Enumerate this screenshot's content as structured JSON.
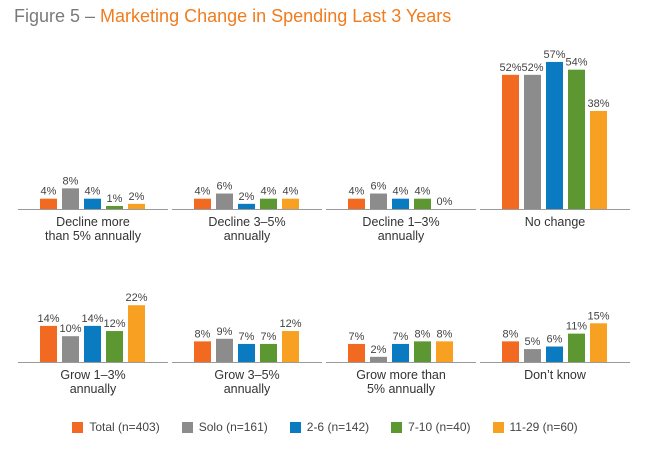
{
  "title": {
    "prefix": "Figure 5 – ",
    "text": "Marketing Change in Spending Last 3 Years"
  },
  "chart_data": {
    "type": "bar",
    "series": [
      {
        "name": "Total (n=403)",
        "color": "#f26a21",
        "values": [
          4,
          4,
          4,
          52,
          14,
          8,
          7,
          8
        ]
      },
      {
        "name": "Solo (n=161)",
        "color": "#8c8c8c",
        "values": [
          8,
          6,
          6,
          52,
          10,
          9,
          2,
          5
        ]
      },
      {
        "name": "2-6 (n=142)",
        "color": "#0a7bc1",
        "values": [
          4,
          2,
          4,
          57,
          14,
          7,
          7,
          6
        ]
      },
      {
        "name": "7-10 (n=40)",
        "color": "#5d9732",
        "values": [
          1,
          4,
          4,
          54,
          12,
          7,
          8,
          11
        ]
      },
      {
        "name": "11-29 (n=60)",
        "color": "#f7a021",
        "values": [
          2,
          4,
          0,
          38,
          22,
          12,
          8,
          15
        ]
      }
    ],
    "categories": [
      [
        "Decline more",
        "than 5% annually"
      ],
      [
        "Decline 3–5%",
        "annually"
      ],
      [
        "Decline 1–3%",
        "annually"
      ],
      [
        "No change"
      ],
      [
        "Grow 1–3%",
        "annually"
      ],
      [
        "Grow 3–5%",
        "annually"
      ],
      [
        "Grow more than",
        "5% annually"
      ],
      [
        "Don’t know"
      ]
    ],
    "value_suffix": "%",
    "legend_position": "bottom",
    "grid": false
  }
}
